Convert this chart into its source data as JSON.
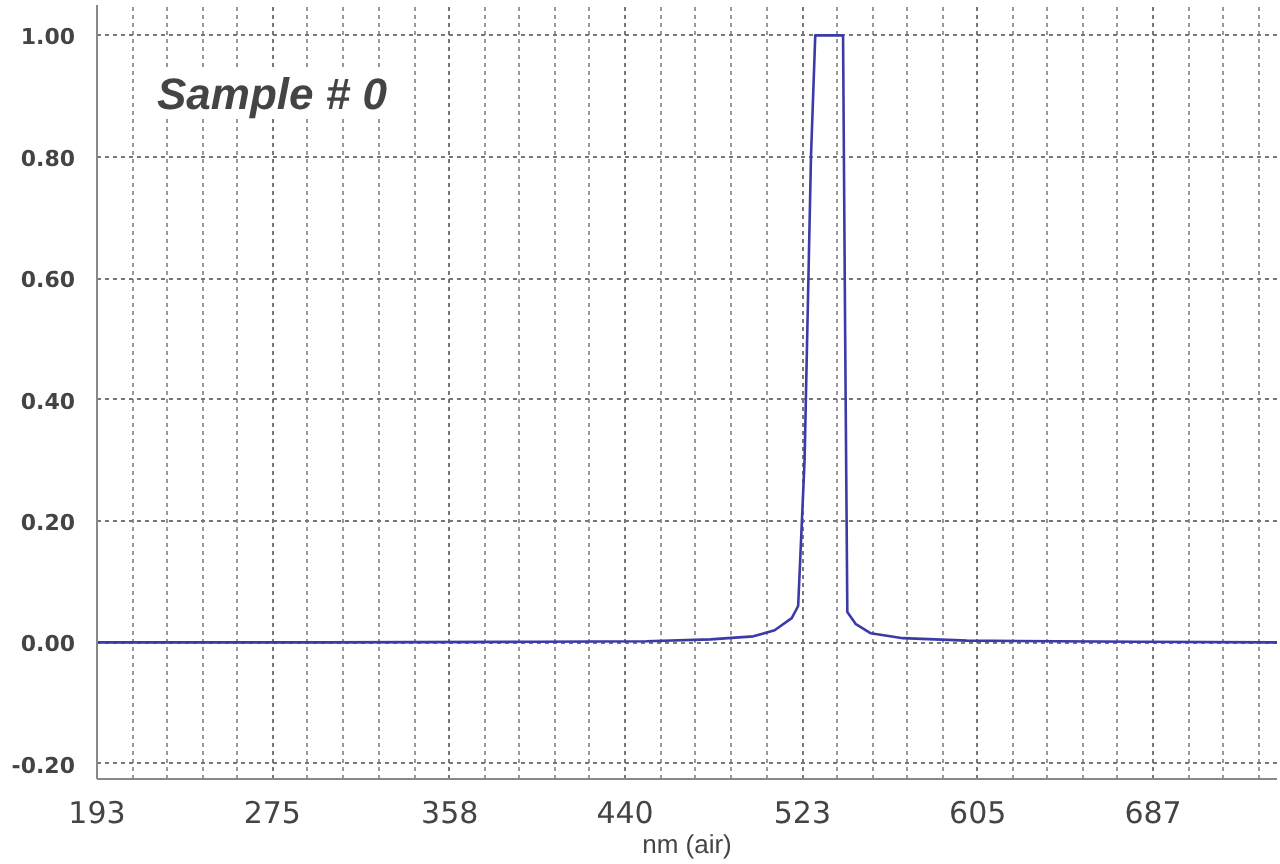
{
  "chart_data": {
    "type": "line",
    "xlabel": "nm (air)",
    "annotations": [
      "Sample # 0"
    ],
    "x": [
      193,
      300,
      400,
      450,
      480,
      500,
      510,
      518,
      521,
      524,
      527,
      529,
      542,
      543,
      544,
      548,
      555,
      570,
      600,
      680,
      745
    ],
    "series": [
      {
        "color": "#3a3aa8",
        "values": [
          0,
          0,
          0.001,
          0.002,
          0.005,
          0.01,
          0.02,
          0.04,
          0.06,
          0.3,
          0.8,
          1.0,
          1.0,
          0.5,
          0.05,
          0.03,
          0.015,
          0.007,
          0.003,
          0.001,
          0
        ]
      }
    ],
    "xlim": [
      193,
      745
    ],
    "xticks": [
      193,
      275,
      358,
      440,
      523,
      605,
      687
    ],
    "ylim": [
      -0.225,
      1.05
    ],
    "yticks": [
      {
        "value": -0.2,
        "label": "-0.20"
      },
      {
        "value": 0,
        "label": "0.00"
      },
      {
        "value": 0.2,
        "label": "0.20"
      },
      {
        "value": 0.4,
        "label": "0.40"
      },
      {
        "value": 0.6,
        "label": "0.60"
      },
      {
        "value": 0.8,
        "label": "0.80"
      },
      {
        "value": 1.0,
        "label": "1.00"
      }
    ],
    "grid": true,
    "marker": "none",
    "line_style": "solid"
  }
}
